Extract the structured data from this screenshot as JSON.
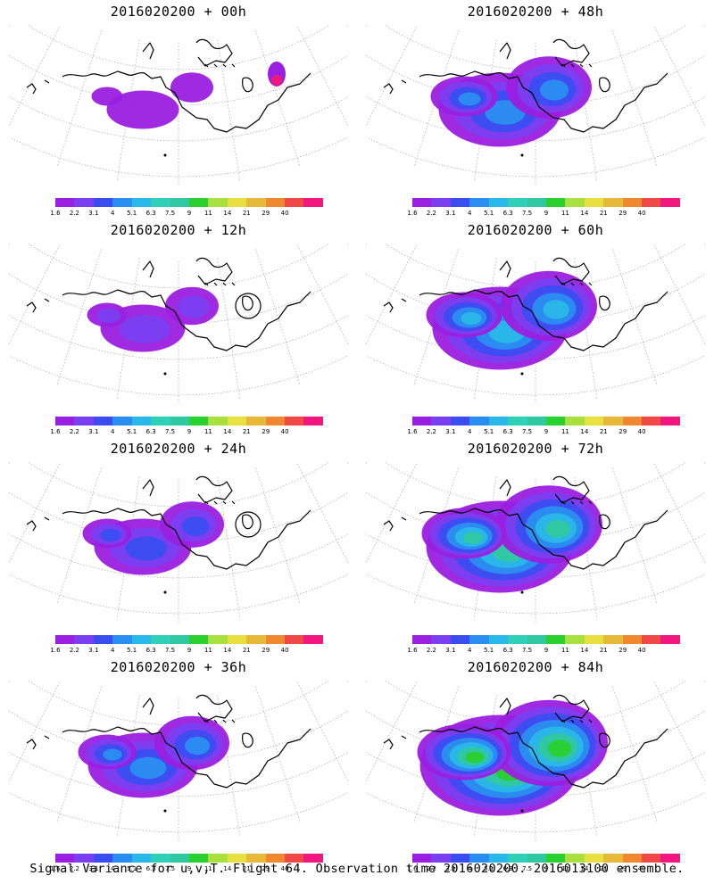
{
  "caption": "Signal Variance for u,v,T. Flight 64. Observation time 2016020200. 2016013100 ensemble.",
  "colorbar": {
    "labels": [
      "1.6",
      "2.2",
      "3.1",
      "4",
      "5.1",
      "6.3",
      "7.5",
      "9",
      "11",
      "14",
      "21",
      "29",
      "40"
    ],
    "colors": [
      "#9b1fe0",
      "#7a3ff0",
      "#3a4ef0",
      "#2a8ef0",
      "#2ab8e8",
      "#30d0b8",
      "#30c8a0",
      "#2ad030",
      "#a8e040",
      "#e8e040",
      "#e8b838",
      "#f08830",
      "#f04848",
      "#f0187e"
    ]
  },
  "chart_data": [
    {
      "type": "heatmap",
      "title": "2016020200 + 00h",
      "lead_hours": 0,
      "intensity": 0.15,
      "pink_hotspot": true
    },
    {
      "type": "heatmap",
      "title": "2016020200 + 48h",
      "lead_hours": 48,
      "intensity": 0.55
    },
    {
      "type": "heatmap",
      "title": "2016020200 + 12h",
      "lead_hours": 12,
      "intensity": 0.25,
      "circle_marker": true
    },
    {
      "type": "heatmap",
      "title": "2016020200 + 60h",
      "lead_hours": 60,
      "intensity": 0.65
    },
    {
      "type": "heatmap",
      "title": "2016020200 + 24h",
      "lead_hours": 24,
      "intensity": 0.35,
      "circle_marker": true
    },
    {
      "type": "heatmap",
      "title": "2016020200 + 72h",
      "lead_hours": 72,
      "intensity": 0.75
    },
    {
      "type": "heatmap",
      "title": "2016020200 + 36h",
      "lead_hours": 36,
      "intensity": 0.45
    },
    {
      "type": "heatmap",
      "title": "2016020200 + 84h",
      "lead_hours": 84,
      "intensity": 0.85
    }
  ]
}
